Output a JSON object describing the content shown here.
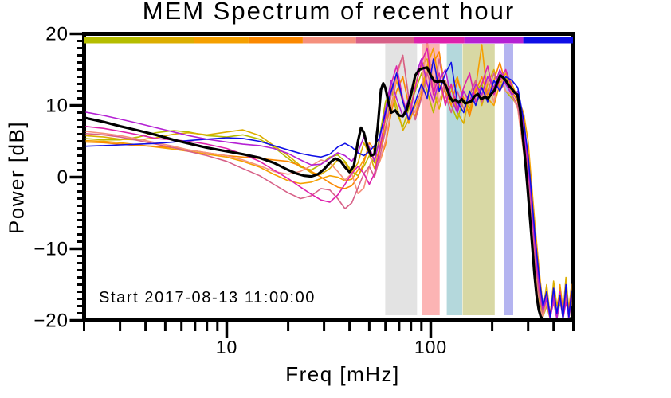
{
  "title": "MEM Spectrum of recent hour",
  "chart_data": {
    "type": "line",
    "title": "MEM Spectrum of recent hour",
    "xlabel": "Freq [mHz]",
    "ylabel": "Power [dB]",
    "annotation": "Start 2017-08-13 11:00:00",
    "x_scale": "log",
    "xlim": [
      2,
      500
    ],
    "ylim": [
      -20,
      20
    ],
    "grid": false,
    "legend": "none",
    "frame_color": "#000000",
    "x_ticks_major": {
      "values": [
        10,
        100
      ],
      "labels": [
        "10",
        "100"
      ]
    },
    "x_ticks_minor": [
      2,
      3,
      4,
      5,
      6,
      7,
      8,
      9,
      20,
      30,
      40,
      50,
      60,
      70,
      80,
      90,
      200,
      300,
      400,
      500
    ],
    "y_ticks_major": {
      "values": [
        -20,
        -10,
        0,
        10,
        20
      ],
      "labels": [
        "−20",
        "−10",
        "0",
        "10",
        "20"
      ]
    },
    "y_tick_minor_step": 1,
    "segment_bar": {
      "description": "colored strip below top axis marking 9 equal log-width frequency segments",
      "boundaries_mhz": [
        2,
        3.77,
        6.95,
        12.8,
        23.6,
        43,
        83,
        146,
        284,
        500
      ],
      "colors": [
        "#b5bd00",
        "#dcae00",
        "#f5a000",
        "#fb8800",
        "#f5907d",
        "#d76087",
        "#de21ac",
        "#b420d4",
        "#0f0fe6"
      ]
    },
    "bands": [
      {
        "name": "gray",
        "from_mhz": 59.8,
        "to_mhz": 85.6,
        "color": "#e3e3e3"
      },
      {
        "name": "red",
        "from_mhz": 90.4,
        "to_mhz": 110.6,
        "color": "#fcb4b4"
      },
      {
        "name": "cyan",
        "from_mhz": 119.8,
        "to_mhz": 142.6,
        "color": "#b4d8dc"
      },
      {
        "name": "khaki",
        "from_mhz": 143.2,
        "to_mhz": 205.7,
        "color": "#d8d8a4"
      },
      {
        "name": "purple",
        "from_mhz": 229.2,
        "to_mhz": 253.4,
        "color": "#b4b4f0"
      }
    ],
    "f_grid": [
      2,
      2.5,
      3,
      3.7,
      4.5,
      5.5,
      6.5,
      8,
      10,
      12,
      14.5,
      17,
      20,
      23,
      26,
      29,
      32,
      35,
      38,
      41,
      44,
      47,
      50,
      53,
      56,
      60,
      64,
      68,
      73,
      78,
      84,
      90,
      96,
      103,
      110,
      118,
      126,
      135,
      145,
      155,
      166,
      178,
      190,
      204,
      218,
      233,
      250,
      267,
      285,
      300,
      312,
      325,
      340,
      355,
      370,
      385,
      400,
      415,
      430,
      445,
      460,
      475,
      490,
      500
    ],
    "series": [
      {
        "name": "seg1-yellowgreen",
        "color": "#b5bd00",
        "db": [
          5.4,
          5.2,
          5.2,
          5.6,
          6.2,
          6.5,
          6.3,
          5.8,
          5.6,
          5.9,
          5.3,
          4.2,
          2.6,
          1.4,
          1.0,
          1.8,
          2.8,
          3.1,
          2.2,
          0.8,
          0.2,
          1.5,
          3.0,
          2.0,
          5.5,
          10.5,
          12.5,
          9.0,
          7.0,
          9.5,
          12.0,
          14.5,
          12.0,
          9.0,
          12.5,
          13.5,
          10.0,
          8.0,
          11.0,
          9.5,
          12.0,
          13.0,
          10.5,
          12.5,
          14.0,
          12.0,
          11.0,
          10.0,
          4.0,
          -1.0,
          -6.0,
          -12.0,
          -17.0,
          -19.5,
          -18.0,
          -19.8,
          -16.5,
          -19.9,
          -17.5,
          -19.2,
          -15.5,
          -19.8,
          -17.0,
          -19.0
        ]
      },
      {
        "name": "seg2-gold",
        "color": "#dcae00",
        "db": [
          5.8,
          5.6,
          5.3,
          5.2,
          5.5,
          6.0,
          6.2,
          5.9,
          6.3,
          6.6,
          5.8,
          4.4,
          3.0,
          1.6,
          0.6,
          0.4,
          1.2,
          2.4,
          2.0,
          0.6,
          2.0,
          4.8,
          3.2,
          1.2,
          4.0,
          8.0,
          12.8,
          10.0,
          6.5,
          8.0,
          13.0,
          15.5,
          16.5,
          12.0,
          9.5,
          13.0,
          12.5,
          9.0,
          7.5,
          11.5,
          13.5,
          10.0,
          13.0,
          15.0,
          12.5,
          14.0,
          12.5,
          11.5,
          8.0,
          3.0,
          -3.0,
          -9.0,
          -15.0,
          -18.5,
          -15.0,
          -19.5,
          -14.5,
          -18.0,
          -16.0,
          -19.0,
          -14.0,
          -18.5,
          -16.0,
          -13.5
        ]
      },
      {
        "name": "seg3-orange",
        "color": "#f5a000",
        "db": [
          5.1,
          5.0,
          4.8,
          4.5,
          4.2,
          3.9,
          3.6,
          3.2,
          2.8,
          2.2,
          1.4,
          0.4,
          -0.5,
          -0.9,
          -0.7,
          -0.2,
          0.2,
          0.0,
          -0.5,
          -0.3,
          1.0,
          2.5,
          4.0,
          2.5,
          3.5,
          7.0,
          10.0,
          13.5,
          10.5,
          7.5,
          10.0,
          12.0,
          15.5,
          18.0,
          13.0,
          10.5,
          12.0,
          14.0,
          10.5,
          9.0,
          12.5,
          18.5,
          11.0,
          10.0,
          13.0,
          14.5,
          13.0,
          11.0,
          9.0,
          5.0,
          -1.0,
          -7.0,
          -13.0,
          -18.0,
          -16.5,
          -19.0,
          -15.5,
          -19.5,
          -15.0,
          -18.5,
          -16.5,
          -19.5,
          -15.0,
          -17.0
        ]
      },
      {
        "name": "seg4-darkorange",
        "color": "#fb8800",
        "db": [
          4.9,
          4.8,
          4.6,
          4.4,
          4.3,
          4.1,
          3.8,
          3.4,
          3.0,
          2.8,
          2.6,
          2.4,
          2.2,
          1.6,
          0.8,
          0.0,
          -0.8,
          -1.4,
          -1.6,
          -1.2,
          0.0,
          2.0,
          4.8,
          3.8,
          2.0,
          4.5,
          9.0,
          12.0,
          14.0,
          10.0,
          8.5,
          11.5,
          14.5,
          16.0,
          17.5,
          12.0,
          10.0,
          13.5,
          11.0,
          8.5,
          12.0,
          14.0,
          11.5,
          13.5,
          16.0,
          13.0,
          12.0,
          10.5,
          6.0,
          1.0,
          -4.5,
          -10.5,
          -16.0,
          -19.0,
          -17.0,
          -19.8,
          -16.0,
          -19.0,
          -15.5,
          -19.5,
          -16.5,
          -18.5,
          -15.0,
          -16.0
        ]
      },
      {
        "name": "seg5-salmon",
        "color": "#f5907d",
        "db": [
          6.4,
          6.1,
          5.8,
          5.3,
          4.8,
          4.3,
          3.8,
          3.4,
          3.0,
          2.4,
          1.6,
          0.8,
          0.4,
          0.8,
          1.6,
          2.4,
          2.0,
          0.8,
          -0.4,
          0.5,
          -2.3,
          -1.5,
          1.5,
          3.5,
          2.0,
          5.0,
          9.5,
          14.0,
          17.0,
          11.0,
          9.0,
          12.5,
          19.0,
          13.0,
          10.5,
          13.5,
          11.0,
          9.0,
          12.0,
          10.0,
          13.0,
          11.0,
          13.5,
          10.5,
          14.5,
          12.0,
          11.5,
          9.5,
          3.5,
          -2.0,
          -7.5,
          -13.5,
          -18.0,
          -19.5,
          -17.5,
          -19.9,
          -16.5,
          -19.5,
          -17.0,
          -19.8,
          -16.0,
          -19.5,
          -17.5,
          -18.5
        ]
      },
      {
        "name": "seg6-pinkred",
        "color": "#d76087",
        "db": [
          6.1,
          5.9,
          5.6,
          5.1,
          4.6,
          4.1,
          3.6,
          3.0,
          2.2,
          1.2,
          0.2,
          -1.0,
          -2.2,
          -3.0,
          -2.6,
          -1.6,
          -1.8,
          -3.0,
          -4.4,
          -3.6,
          -1.5,
          0.5,
          1.5,
          0.0,
          2.5,
          6.5,
          11.5,
          14.5,
          17.0,
          11.0,
          8.0,
          11.0,
          14.5,
          12.0,
          16.5,
          11.5,
          9.0,
          12.0,
          9.5,
          11.5,
          13.5,
          10.5,
          12.0,
          14.5,
          12.0,
          13.5,
          11.5,
          10.0,
          5.0,
          0.0,
          -5.5,
          -11.5,
          -16.5,
          -19.0,
          -16.0,
          -19.5,
          -17.5,
          -19.9,
          -16.5,
          -19.0,
          -17.0,
          -19.9,
          -16.5,
          -17.5
        ]
      },
      {
        "name": "seg7-magenta",
        "color": "#de21ac",
        "db": [
          7.1,
          6.8,
          6.4,
          5.9,
          5.4,
          5.2,
          5.0,
          4.6,
          4.0,
          3.2,
          2.2,
          1.0,
          -0.2,
          -1.4,
          -2.4,
          -3.2,
          -3.5,
          -2.5,
          -1.0,
          0.5,
          1.5,
          0.5,
          -1.0,
          0.5,
          3.5,
          8.5,
          13.0,
          15.5,
          11.0,
          8.0,
          12.5,
          16.0,
          18.0,
          11.5,
          14.5,
          10.0,
          13.0,
          9.5,
          12.5,
          14.5,
          10.5,
          13.0,
          15.5,
          11.5,
          13.5,
          15.0,
          12.5,
          11.0,
          6.5,
          1.5,
          -4.0,
          -10.0,
          -15.5,
          -18.5,
          -16.5,
          -19.8,
          -17.0,
          -19.5,
          -16.0,
          -19.9,
          -17.5,
          -19.0,
          -16.0,
          -18.0
        ]
      },
      {
        "name": "seg8-purple",
        "color": "#b420d4",
        "db": [
          9.1,
          8.6,
          8.1,
          7.5,
          6.9,
          6.3,
          5.8,
          5.3,
          4.9,
          4.6,
          4.4,
          4.0,
          3.3,
          2.4,
          1.7,
          1.8,
          2.6,
          3.4,
          3.0,
          2.2,
          3.5,
          5.6,
          4.2,
          2.2,
          5.0,
          9.5,
          13.5,
          11.0,
          8.5,
          11.0,
          14.0,
          16.5,
          13.0,
          10.5,
          13.5,
          15.0,
          11.0,
          9.0,
          12.0,
          10.5,
          13.0,
          11.5,
          14.0,
          12.5,
          15.0,
          13.0,
          11.5,
          12.0,
          7.0,
          2.0,
          -3.5,
          -9.5,
          -15.0,
          -18.5,
          -17.0,
          -19.9,
          -16.5,
          -19.8,
          -17.0,
          -19.5,
          -16.0,
          -19.8,
          -16.5,
          -17.0
        ]
      },
      {
        "name": "seg9-blue",
        "color": "#0f0fe6",
        "db": [
          4.3,
          4.4,
          4.5,
          4.6,
          4.7,
          4.9,
          5.1,
          5.3,
          5.5,
          5.4,
          5.0,
          4.4,
          3.8,
          3.3,
          3.0,
          2.8,
          3.2,
          4.2,
          4.7,
          4.2,
          3.4,
          3.0,
          3.6,
          4.4,
          5.5,
          9.0,
          12.0,
          14.5,
          10.5,
          8.0,
          10.5,
          13.0,
          11.0,
          16.5,
          12.0,
          14.5,
          16.0,
          10.5,
          9.0,
          12.0,
          10.0,
          12.5,
          10.5,
          13.5,
          12.0,
          14.0,
          13.5,
          12.5,
          8.0,
          3.0,
          -2.5,
          -8.5,
          -14.0,
          -18.0,
          -16.0,
          -19.5,
          -15.5,
          -19.0,
          -16.5,
          -19.8,
          -15.0,
          -19.5,
          -16.0,
          -15.5
        ]
      },
      {
        "name": "mean",
        "color": "#000000",
        "width": 3.2,
        "f": [
          2,
          2.5,
          3,
          3.7,
          4.5,
          5.5,
          6.5,
          8,
          10,
          12,
          14.5,
          17,
          20,
          22,
          24,
          26,
          28,
          30,
          32,
          34,
          36,
          38,
          40,
          42,
          44,
          45.5,
          47,
          49,
          51,
          53,
          55,
          57,
          58.5,
          60,
          62,
          64,
          67,
          70,
          73,
          76,
          80,
          84,
          88,
          92,
          96,
          100,
          104,
          108,
          112,
          116,
          120,
          124,
          128,
          132,
          137,
          142,
          147,
          152,
          158,
          164,
          170,
          177,
          184,
          191,
          198,
          205,
          212,
          219,
          226,
          233,
          241,
          250,
          258,
          266,
          274,
          282,
          290,
          298,
          306,
          314,
          322,
          330,
          338,
          346,
          356,
          370,
          385,
          400,
          420,
          440,
          460,
          480,
          492,
          500
        ],
        "db": [
          8.3,
          7.7,
          7.1,
          6.5,
          5.9,
          5.2,
          4.7,
          4.1,
          3.6,
          3.2,
          2.7,
          2.0,
          1.0,
          0.5,
          0.2,
          0.1,
          0.4,
          1.1,
          2.0,
          2.6,
          2.3,
          1.4,
          0.7,
          1.6,
          5.0,
          6.9,
          6.2,
          4.2,
          3.0,
          3.2,
          7.0,
          12.2,
          13.1,
          12.4,
          10.5,
          9.0,
          9.3,
          8.6,
          8.5,
          9.3,
          11.5,
          14.2,
          15.0,
          15.2,
          15.3,
          14.2,
          13.4,
          13.3,
          13.4,
          13.3,
          12.4,
          11.2,
          10.6,
          10.8,
          10.4,
          10.9,
          10.3,
          10.4,
          10.6,
          11.3,
          11.6,
          10.9,
          11.2,
          11.0,
          11.6,
          12.1,
          13.2,
          14.2,
          13.9,
          13.5,
          12.8,
          12.3,
          11.8,
          11.5,
          9.5,
          6.0,
          2.5,
          -1.5,
          -5.5,
          -9.5,
          -13.5,
          -16.5,
          -18.5,
          -19.5,
          -19.9,
          -20,
          -19.9,
          -20,
          -19.9,
          -20,
          -19.9,
          -20,
          -19.6,
          -19.2
        ]
      }
    ]
  }
}
